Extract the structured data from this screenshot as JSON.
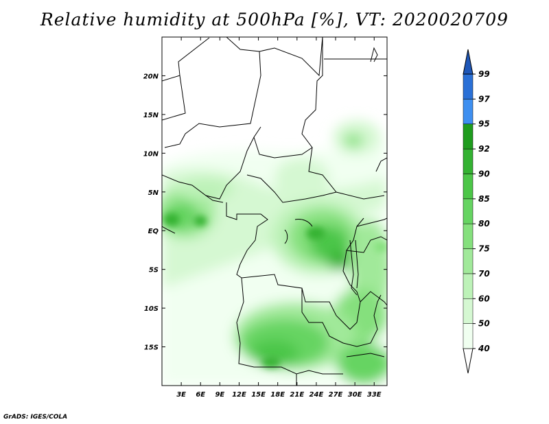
{
  "title": "Relative humidity at 500hPa [%], VT: 2020020709",
  "credit": "GrADS: IGES/COLA",
  "map": {
    "lon_range": [
      0,
      35
    ],
    "lat_range": [
      -20,
      25
    ],
    "lon_ticks": [
      "3E",
      "6E",
      "9E",
      "12E",
      "15E",
      "18E",
      "21E",
      "24E",
      "27E",
      "30E",
      "33E"
    ],
    "lat_ticks": [
      "20N",
      "15N",
      "10N",
      "5N",
      "EQ",
      "5S",
      "10S",
      "15S"
    ]
  },
  "colorbar": {
    "levels": [
      "40",
      "50",
      "60",
      "70",
      "75",
      "80",
      "85",
      "90",
      "92",
      "95",
      "97",
      "99"
    ],
    "colors": [
      "#f0fff0",
      "#d5f8d2",
      "#bdf2b8",
      "#a1e99a",
      "#85e07d",
      "#66d462",
      "#4cc648",
      "#34b232",
      "#1f9c1e",
      "#3e8ff0",
      "#2a70d6",
      "#1e57b8"
    ]
  }
}
